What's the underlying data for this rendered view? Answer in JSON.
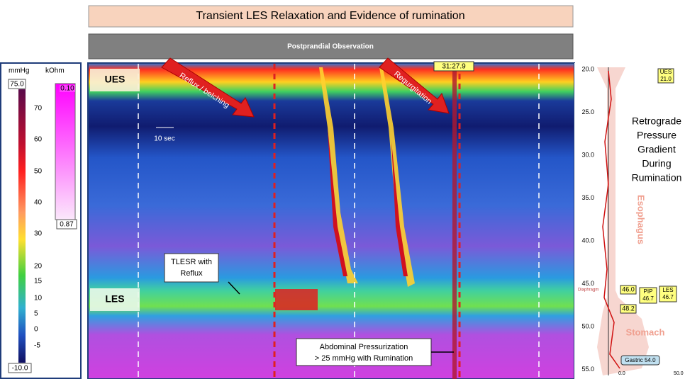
{
  "header": {
    "title": "Transient LES Relaxation and Evidence of rumination",
    "subtitle": "Postprandial Observation"
  },
  "colorbar": {
    "unit_pressure": "mmHg",
    "unit_impedance": "kOhm",
    "max": "75.0",
    "min": "-10.0",
    "ticks": [
      "70",
      "60",
      "50",
      "40",
      "30",
      "20",
      "15",
      "10",
      "5",
      "0",
      "-5"
    ],
    "impedance_max": "0.10",
    "impedance_min": "0.87"
  },
  "plot": {
    "ues_label": "UES",
    "les_label": "LES",
    "scale_label": "10 sec",
    "arrow_reflux": "Reflux / belching",
    "arrow_regurgitation": "Regurgitation",
    "timestamp": "31:27.9",
    "tlesr": [
      "TLESR with",
      "Reflux"
    ],
    "abdominal": [
      "Abdominal Pressurization",
      "> 25 mmHg with Rumination"
    ]
  },
  "profile": {
    "depths": [
      "20.0",
      "25.0",
      "30.0",
      "35.0",
      "40.0",
      "45.0",
      "50.0",
      "55.0"
    ],
    "ues": [
      "UES",
      "21.0"
    ],
    "diaphragm": "Diaphragm",
    "m1": "46.0",
    "pip": [
      "PIP",
      "46.7"
    ],
    "les": [
      "LES",
      "46.7"
    ],
    "m2": "48.2",
    "gastric": "Gastric 54.0",
    "esophagus": "Esophagus",
    "stomach": "Stomach",
    "x_start": "0.0",
    "x_end": "50.0",
    "note": [
      "Retrograde",
      "Pressure",
      "Gradient",
      "During",
      "Rumination"
    ]
  }
}
